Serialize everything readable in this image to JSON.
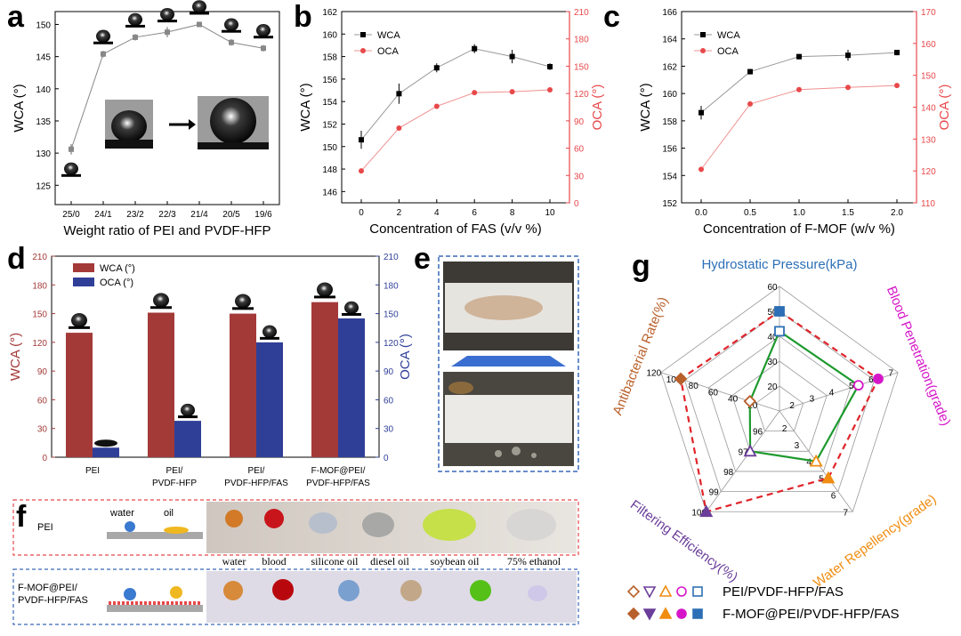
{
  "colors": {
    "red": "#e8484a",
    "wca_bar": "#a33a38",
    "oca_bar": "#2f3f98",
    "radar_red": "#e0242a",
    "radar_green": "#1e9a2e",
    "hydro": "#2d6fb6",
    "blood": "#d516c8",
    "water_rep": "#f08c10",
    "filter": "#6b3e9a",
    "antibac": "#b8602b",
    "dash_red": "#e8484a",
    "dash_blue": "#3a68b8"
  },
  "panels": {
    "a": "a",
    "b": "b",
    "c": "c",
    "d": "d",
    "e": "e",
    "f": "f",
    "g": "g"
  },
  "chart_data": [
    {
      "panel": "a",
      "type": "line",
      "categories": [
        "25/0",
        "24/1",
        "23/2",
        "22/3",
        "21/4",
        "20/5",
        "19/6"
      ],
      "values": [
        130.6,
        145.4,
        148.0,
        148.8,
        150.0,
        147.2,
        146.3
      ],
      "errors": [
        0.8,
        0.5,
        0.5,
        0.8,
        0.4,
        0.5,
        0.5
      ],
      "xlabel": "Weight ratio of PEI and PVDF-HFP",
      "ylabel": "WCA (°)",
      "ylim": [
        122,
        152
      ],
      "yticks": [
        125,
        130,
        135,
        140,
        145,
        150
      ]
    },
    {
      "panel": "b",
      "type": "line",
      "x": [
        0,
        2,
        4,
        6,
        8,
        10
      ],
      "series": [
        {
          "name": "WCA",
          "values": [
            150.6,
            154.7,
            157.0,
            158.7,
            158.0,
            157.1
          ],
          "errors": [
            0.8,
            0.9,
            0.4,
            0.4,
            0.6,
            0.3
          ],
          "axis": "left"
        },
        {
          "name": "OCA",
          "values": [
            35,
            82,
            106,
            121,
            122,
            124
          ],
          "axis": "right"
        }
      ],
      "xlabel": "Concentration of FAS (v/v %)",
      "ylabel": "WCA (°)",
      "ylabel_right": "OCA (°)",
      "ylim": [
        145,
        162
      ],
      "yticks": [
        146,
        148,
        150,
        152,
        154,
        156,
        158,
        160,
        162
      ],
      "ylim_right": [
        0,
        210
      ],
      "yticks_right": [
        0,
        30,
        60,
        90,
        120,
        150,
        180,
        210
      ],
      "xticks": [
        0,
        2,
        4,
        6,
        8,
        10
      ]
    },
    {
      "panel": "c",
      "type": "line",
      "x": [
        0.0,
        0.5,
        1.0,
        1.5,
        2.0
      ],
      "series": [
        {
          "name": "WCA",
          "values": [
            158.6,
            161.6,
            162.7,
            162.8,
            163.0
          ],
          "errors": [
            0.5,
            0.2,
            0.2,
            0.4,
            0.2
          ],
          "axis": "left"
        },
        {
          "name": "OCA",
          "values": [
            120.5,
            141.0,
            145.5,
            146.2,
            146.8
          ],
          "axis": "right"
        }
      ],
      "xlabel": "Concentration of F-MOF (w/v %)",
      "ylabel": "WCA (°)",
      "ylabel_right": "OCA (°)",
      "ylim": [
        152,
        166
      ],
      "yticks": [
        152,
        154,
        156,
        158,
        160,
        162,
        164,
        166
      ],
      "ylim_right": [
        110,
        170
      ],
      "yticks_right": [
        110,
        120,
        130,
        140,
        150,
        160,
        170
      ],
      "xticks": [
        "0.0",
        "0.5",
        "1.0",
        "1.5",
        "2.0"
      ]
    },
    {
      "panel": "d",
      "type": "bar",
      "categories": [
        "PEI",
        "PEI/\nPVDF-HFP",
        "PEI/\nPVDF-HFP/FAS",
        "F-MOF@PEI/\nPVDF-HFP/FAS"
      ],
      "series": [
        {
          "name": "WCA (°)",
          "values": [
            130,
            151,
            150,
            162
          ]
        },
        {
          "name": "OCA (°)",
          "values": [
            10,
            38,
            120,
            145
          ]
        }
      ],
      "ylabel": "WCA (°)",
      "ylabel_right": "OCA (°)",
      "ylim": [
        0,
        210
      ],
      "yticks": [
        0,
        30,
        60,
        90,
        120,
        150,
        180,
        210
      ]
    },
    {
      "panel": "g",
      "type": "radar",
      "axes": [
        {
          "name": "Hydrostatic Pressure(kPa)",
          "ticks": [
            "20",
            "30",
            "40",
            "50",
            "60"
          ]
        },
        {
          "name": "Blood Penetration(grade)",
          "ticks": [
            "2",
            "3",
            "4",
            "5",
            "6",
            "7"
          ]
        },
        {
          "name": "Water Repellency(grade)",
          "ticks": [
            "2",
            "3",
            "4",
            "5",
            "6",
            "7"
          ]
        },
        {
          "name": "Filtering Efficiency(%)",
          "ticks": [
            "96",
            "97",
            "98",
            "99",
            "100"
          ]
        },
        {
          "name": "Antibacterial Rate(%)",
          "ticks": [
            "20",
            "40",
            "60",
            "80",
            "100",
            "120"
          ]
        }
      ],
      "series": [
        {
          "name": "PEI/PVDF-HFP/FAS",
          "values": [
            42,
            5,
            4,
            97,
            30
          ]
        },
        {
          "name": "F-MOF@PEI/PVDF-HFP/FAS",
          "values": [
            50,
            6,
            5,
            100,
            100
          ]
        }
      ]
    }
  ],
  "photo": {
    "f_labels": [
      "water",
      "blood",
      "silicone oil",
      "diesel oil",
      "soybean oil",
      "75% ethanol"
    ],
    "f_row1": "PEI",
    "f_row2": "F-MOF@PEI/\nPVDF-HFP/FAS",
    "f_water": "water",
    "f_oil": "oil"
  }
}
